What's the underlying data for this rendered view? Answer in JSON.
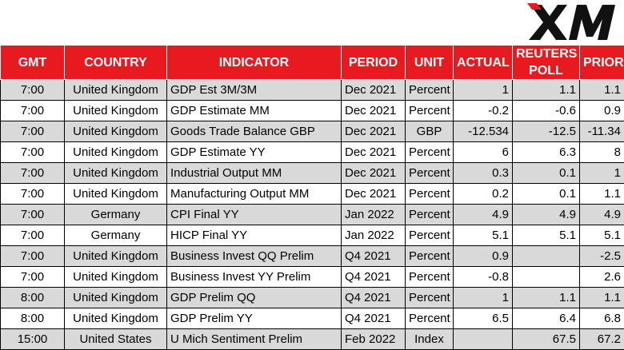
{
  "brand": {
    "logo_text": "XM"
  },
  "colors": {
    "header_bg": "#e8191f",
    "row_alt": "#d9d9d9"
  },
  "headers": [
    "GMT",
    "COUNTRY",
    "INDICATOR",
    "PERIOD",
    "UNIT",
    "ACTUAL",
    "REUTERS POLL",
    "PRIOR"
  ],
  "rows": [
    [
      "7:00",
      "United Kingdom",
      "GDP Est 3M/3M",
      "Dec 2021",
      "Percent",
      "1",
      "1.1",
      "1.1"
    ],
    [
      "7:00",
      "United Kingdom",
      "GDP Estimate MM",
      "Dec 2021",
      "Percent",
      "-0.2",
      "-0.6",
      "0.9"
    ],
    [
      "7:00",
      "United Kingdom",
      "Goods Trade Balance GBP",
      "Dec 2021",
      "GBP",
      "-12.534",
      "-12.5",
      "-11.34"
    ],
    [
      "7:00",
      "United Kingdom",
      "GDP Estimate YY",
      "Dec 2021",
      "Percent",
      "6",
      "6.3",
      "8"
    ],
    [
      "7:00",
      "United Kingdom",
      "Industrial Output MM",
      "Dec 2021",
      "Percent",
      "0.3",
      "0.1",
      "1"
    ],
    [
      "7:00",
      "United Kingdom",
      "Manufacturing Output MM",
      "Dec 2021",
      "Percent",
      "0.2",
      "0.1",
      "1.1"
    ],
    [
      "7:00",
      "Germany",
      "CPI Final YY",
      "Jan 2022",
      "Percent",
      "4.9",
      "4.9",
      "4.9"
    ],
    [
      "7:00",
      "Germany",
      "HICP Final YY",
      "Jan 2022",
      "Percent",
      "5.1",
      "5.1",
      "5.1"
    ],
    [
      "7:00",
      "United Kingdom",
      "Business Invest QQ Prelim",
      "Q4 2021",
      "Percent",
      "0.9",
      "",
      "-2.5"
    ],
    [
      "7:00",
      "United Kingdom",
      "Business Invest YY Prelim",
      "Q4 2021",
      "Percent",
      "-0.8",
      "",
      "2.6"
    ],
    [
      "8:00",
      "United Kingdom",
      "GDP Prelim QQ",
      "Q4 2021",
      "Percent",
      "1",
      "1.1",
      "1.1"
    ],
    [
      "8:00",
      "United Kingdom",
      "GDP Prelim YY",
      "Q4 2021",
      "Percent",
      "6.5",
      "6.4",
      "6.8"
    ],
    [
      "15:00",
      "United States",
      "U Mich Sentiment Prelim",
      "Feb 2022",
      "Index",
      "",
      "67.5",
      "67.2"
    ]
  ]
}
